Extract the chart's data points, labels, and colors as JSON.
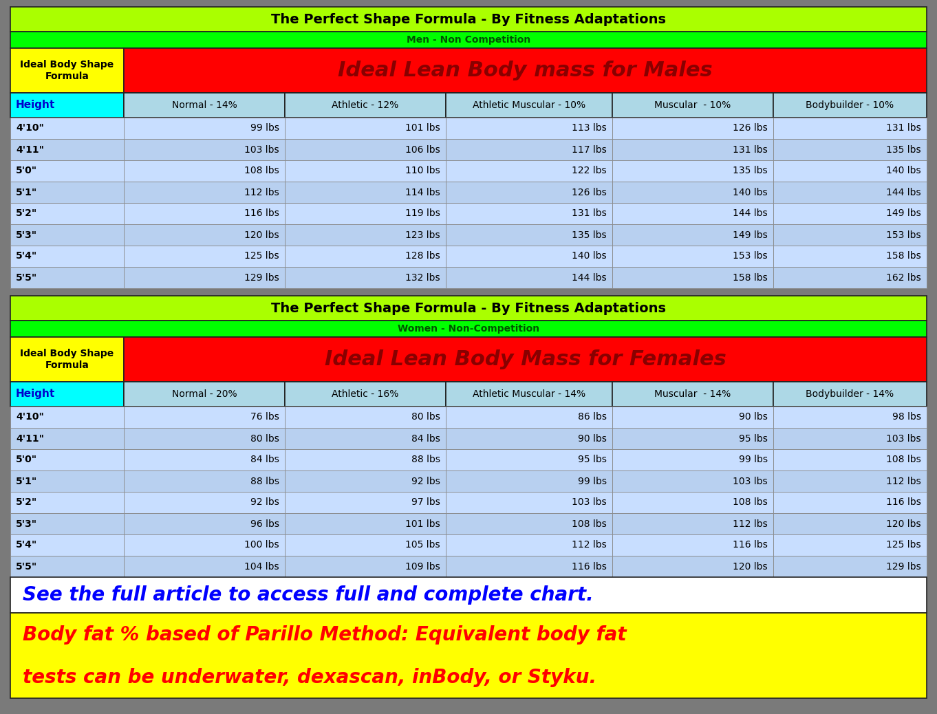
{
  "title": "The Perfect Shape Formula - By Fitness Adaptations",
  "title_bg": "#AAFF00",
  "title_color": "#000000",
  "men_subtitle": "Men - Non Competition",
  "men_subtitle_bg": "#00FF00",
  "men_subtitle_color": "#005500",
  "men_ideal_label": "Ideal Body Shape\nFormula",
  "men_ideal_label_bg": "#FFFF00",
  "men_ideal_title": "Ideal Lean Body mass for Males",
  "men_ideal_bg": "#FF0000",
  "men_ideal_color": "#880000",
  "men_header": [
    "Height",
    "Normal - 14%",
    "Athletic - 12%",
    "Athletic Muscular - 10%",
    "Muscular  - 10%",
    "Bodybuilder - 10%"
  ],
  "men_header_height_bg": "#00FFFF",
  "men_header_height_color": "#0000CC",
  "men_header_rest_bg": "#ADD8E6",
  "men_header_rest_color": "#000000",
  "men_heights": [
    "4'10\"",
    "4'11\"",
    "5'0\"",
    "5'1\"",
    "5'2\"",
    "5'3\"",
    "5'4\"",
    "5'5\""
  ],
  "men_data": [
    [
      "99 lbs",
      "101 lbs",
      "113 lbs",
      "126 lbs",
      "131 lbs"
    ],
    [
      "103 lbs",
      "106 lbs",
      "117 lbs",
      "131 lbs",
      "135 lbs"
    ],
    [
      "108 lbs",
      "110 lbs",
      "122 lbs",
      "135 lbs",
      "140 lbs"
    ],
    [
      "112 lbs",
      "114 lbs",
      "126 lbs",
      "140 lbs",
      "144 lbs"
    ],
    [
      "116 lbs",
      "119 lbs",
      "131 lbs",
      "144 lbs",
      "149 lbs"
    ],
    [
      "120 lbs",
      "123 lbs",
      "135 lbs",
      "149 lbs",
      "153 lbs"
    ],
    [
      "125 lbs",
      "128 lbs",
      "140 lbs",
      "153 lbs",
      "158 lbs"
    ],
    [
      "129 lbs",
      "132 lbs",
      "144 lbs",
      "158 lbs",
      "162 lbs"
    ]
  ],
  "women_subtitle": "Women - Non-Competition",
  "women_subtitle_bg": "#00FF00",
  "women_subtitle_color": "#005500",
  "women_ideal_label": "Ideal Body Shape\nFormula",
  "women_ideal_label_bg": "#FFFF00",
  "women_ideal_title": "Ideal Lean Body Mass for Females",
  "women_ideal_bg": "#FF0000",
  "women_ideal_color": "#880000",
  "women_header": [
    "Height",
    "Normal - 20%",
    "Athletic - 16%",
    "Athletic Muscular - 14%",
    "Muscular  - 14%",
    "Bodybuilder - 14%"
  ],
  "women_header_height_bg": "#00FFFF",
  "women_header_height_color": "#0000CC",
  "women_header_rest_bg": "#ADD8E6",
  "women_header_rest_color": "#000000",
  "women_heights": [
    "4'10\"",
    "4'11\"",
    "5'0\"",
    "5'1\"",
    "5'2\"",
    "5'3\"",
    "5'4\"",
    "5'5\""
  ],
  "women_data": [
    [
      "76 lbs",
      "80 lbs",
      "86 lbs",
      "90 lbs",
      "98 lbs"
    ],
    [
      "80 lbs",
      "84 lbs",
      "90 lbs",
      "95 lbs",
      "103 lbs"
    ],
    [
      "84 lbs",
      "88 lbs",
      "95 lbs",
      "99 lbs",
      "108 lbs"
    ],
    [
      "88 lbs",
      "92 lbs",
      "99 lbs",
      "103 lbs",
      "112 lbs"
    ],
    [
      "92 lbs",
      "97 lbs",
      "103 lbs",
      "108 lbs",
      "116 lbs"
    ],
    [
      "96 lbs",
      "101 lbs",
      "108 lbs",
      "112 lbs",
      "120 lbs"
    ],
    [
      "100 lbs",
      "105 lbs",
      "112 lbs",
      "116 lbs",
      "125 lbs"
    ],
    [
      "104 lbs",
      "109 lbs",
      "116 lbs",
      "120 lbs",
      "129 lbs"
    ]
  ],
  "row_bg_light": "#C8DEFF",
  "row_bg_dark": "#B8D0F0",
  "footer_text1": "See the full article to access full and complete chart.",
  "footer_bg1": "#FFFFFF",
  "footer_color1": "#0000FF",
  "footer_text2_line1": "Body fat % based of Parillo Method: Equivalent body fat",
  "footer_text2_line2": "tests can be underwater, dexascan, inBody, or Styku.",
  "footer_bg2": "#FFFF00",
  "footer_color2": "#FF0000",
  "outer_bg": "#7A7A7A"
}
